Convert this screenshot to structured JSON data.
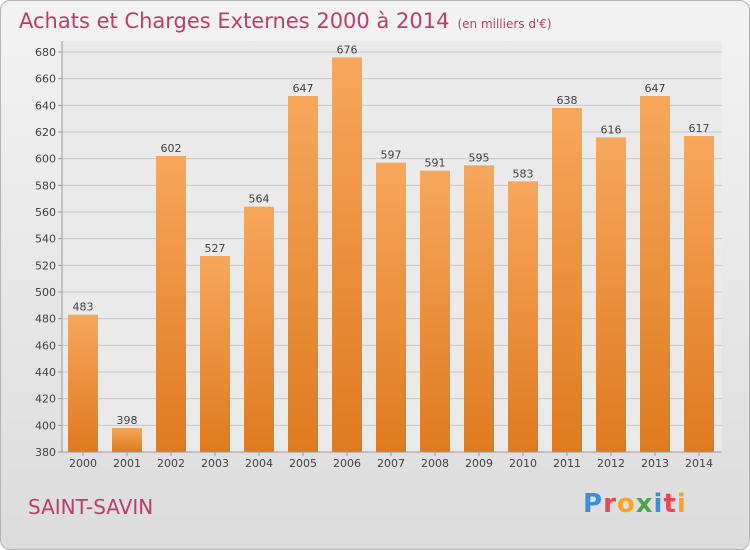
{
  "header": {
    "title": "Achats et Charges Externes 2000 à 2014",
    "subtitle": "(en milliers d'€)"
  },
  "footer": {
    "commune": "SAINT-SAVIN",
    "logo_text": "Proxiti"
  },
  "colors": {
    "accent": "#c23a6c",
    "bar_light": "#f7a75c",
    "bar_dark": "#e07a1f",
    "logo_letters": [
      "#3a8fd6",
      "#e8474c",
      "#f4a623",
      "#4aa84a",
      "#3a8fd6",
      "#e8474c",
      "#f4a623"
    ]
  },
  "chart_data": {
    "type": "bar",
    "title": "Achats et Charges Externes 2000 à 2014",
    "subtitle": "(en milliers d'€)",
    "categories": [
      "2000",
      "2001",
      "2002",
      "2003",
      "2004",
      "2005",
      "2006",
      "2007",
      "2008",
      "2009",
      "2010",
      "2011",
      "2012",
      "2013",
      "2014"
    ],
    "values": [
      483,
      398,
      602,
      527,
      564,
      647,
      676,
      597,
      591,
      595,
      583,
      638,
      616,
      647,
      617
    ],
    "ylim": [
      380,
      680
    ],
    "yticks": [
      380,
      400,
      420,
      440,
      460,
      480,
      500,
      520,
      540,
      560,
      580,
      600,
      620,
      640,
      660,
      680
    ],
    "grid": true,
    "legend": "none"
  }
}
